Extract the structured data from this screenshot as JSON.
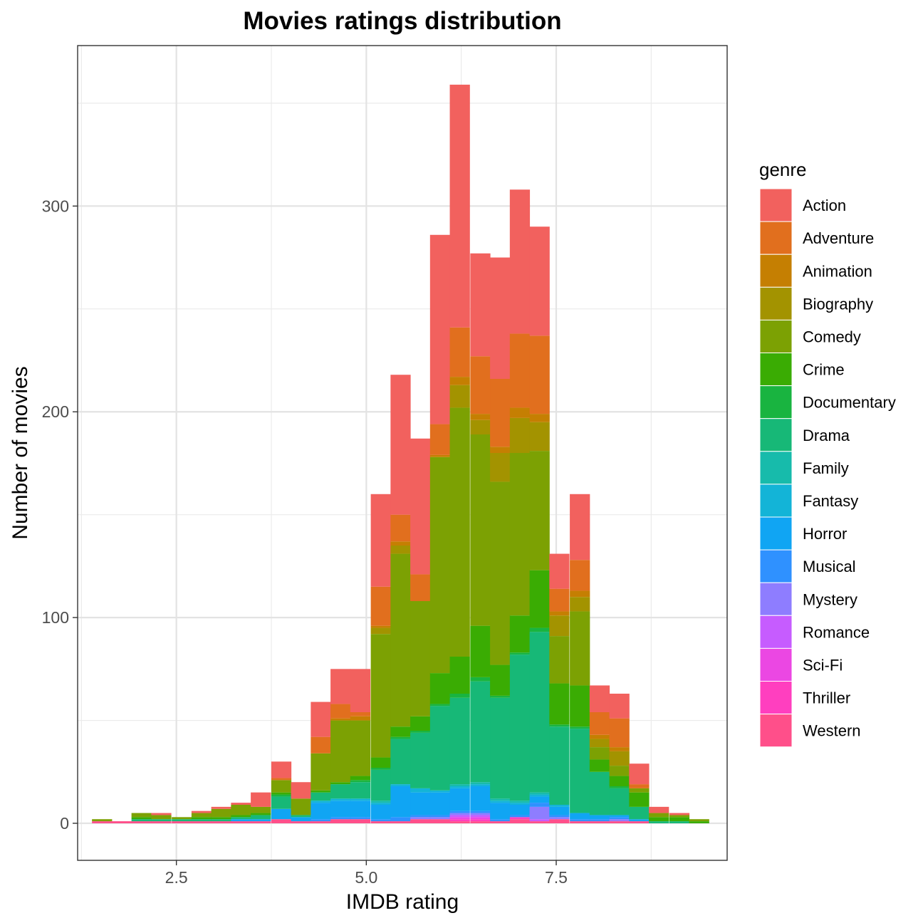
{
  "chart_data": {
    "type": "bar",
    "subtype": "stacked-histogram",
    "title": "Movies ratings distribution",
    "xlabel": "IMDB rating",
    "ylabel": "Number of movies",
    "xlim": [
      1.2,
      9.75
    ],
    "ylim": [
      -18,
      378
    ],
    "x_ticks": [
      2.5,
      5.0,
      7.5
    ],
    "x_tick_labels": [
      "2.5",
      "5.0",
      "7.5"
    ],
    "y_ticks": [
      0,
      100,
      200,
      300
    ],
    "y_tick_labels": [
      "0",
      "100",
      "200",
      "300"
    ],
    "grid": true,
    "legend_title": "genre",
    "legend_position": "right",
    "bin_width": 0.262,
    "bins": [
      1.52,
      1.78,
      2.04,
      2.3,
      2.57,
      2.83,
      3.09,
      3.35,
      3.61,
      3.88,
      4.14,
      4.4,
      4.66,
      4.92,
      5.19,
      5.45,
      5.71,
      5.97,
      6.23,
      6.5,
      6.76,
      7.02,
      7.28,
      7.54,
      7.81,
      8.07,
      8.33,
      8.59,
      8.85,
      9.12,
      9.38
    ],
    "series": [
      {
        "name": "Western",
        "color": "#FF4F8A",
        "values": [
          1,
          1,
          1,
          1,
          1,
          1,
          1,
          1,
          1,
          2,
          1,
          1,
          2,
          2,
          1,
          1,
          2,
          2,
          1,
          1,
          1,
          2,
          1,
          2,
          1,
          1,
          1,
          1,
          0,
          0,
          0
        ]
      },
      {
        "name": "Thriller",
        "color": "#FF3FBF",
        "values": [
          0,
          0,
          0,
          0,
          0,
          0,
          0,
          0,
          0,
          0,
          0,
          0,
          0,
          0,
          0,
          0,
          0,
          0,
          1,
          1,
          0,
          1,
          0,
          0,
          0,
          0,
          0,
          0,
          0,
          0,
          0
        ]
      },
      {
        "name": "Sci-Fi",
        "color": "#EB47E3",
        "values": [
          0,
          0,
          0,
          0,
          0,
          0,
          0,
          0,
          0,
          0,
          0,
          0,
          0,
          0,
          0,
          0,
          0,
          0,
          1,
          1,
          0,
          0,
          0,
          0,
          0,
          0,
          0,
          0,
          0,
          0,
          0
        ]
      },
      {
        "name": "Romance",
        "color": "#C65CFF",
        "values": [
          0,
          0,
          0,
          0,
          0,
          0,
          0,
          0,
          0,
          0,
          0,
          0,
          0,
          0,
          0,
          0,
          0,
          0,
          1,
          1,
          0,
          0,
          1,
          0,
          0,
          0,
          0,
          0,
          0,
          0,
          0
        ]
      },
      {
        "name": "Mystery",
        "color": "#8E7DFF",
        "values": [
          0,
          0,
          0,
          0,
          0,
          0,
          0,
          0,
          0,
          0,
          0,
          0,
          0,
          0,
          0,
          0,
          1,
          1,
          1,
          1,
          0,
          0,
          6,
          1,
          0,
          0,
          1,
          0,
          0,
          0,
          0
        ]
      },
      {
        "name": "Musical",
        "color": "#2F91FF",
        "values": [
          0,
          0,
          0,
          0,
          0,
          0,
          0,
          0,
          0,
          0,
          0,
          1,
          1,
          1,
          1,
          2,
          1,
          1,
          1,
          1,
          1,
          1,
          2,
          1,
          1,
          1,
          1,
          0,
          0,
          0,
          0
        ]
      },
      {
        "name": "Horror",
        "color": "#10A5F3",
        "values": [
          0,
          0,
          0,
          0,
          0,
          0,
          0,
          1,
          1,
          5,
          2,
          8,
          8,
          8,
          7,
          15,
          11,
          11,
          11,
          12,
          8,
          5,
          3,
          4,
          3,
          2,
          1,
          1,
          0,
          0,
          0
        ]
      },
      {
        "name": "Fantasy",
        "color": "#13B4D7",
        "values": [
          0,
          0,
          0,
          0,
          0,
          0,
          0,
          0,
          0,
          0,
          0,
          1,
          1,
          1,
          1,
          1,
          2,
          1,
          1,
          1,
          1,
          1,
          1,
          1,
          0,
          0,
          0,
          0,
          0,
          0,
          0
        ]
      },
      {
        "name": "Family",
        "color": "#17BBAB",
        "values": [
          0,
          0,
          0,
          0,
          0,
          0,
          0,
          0,
          0,
          0,
          0,
          0,
          0,
          0,
          1,
          0,
          0,
          0,
          1,
          1,
          1,
          1,
          1,
          0,
          0,
          0,
          0,
          0,
          0,
          0,
          0
        ]
      },
      {
        "name": "Drama",
        "color": "#17B877",
        "values": [
          0,
          0,
          1,
          1,
          1,
          1,
          1,
          1,
          2,
          6,
          1,
          4,
          7,
          8,
          15,
          22,
          27,
          41,
          42,
          49,
          49,
          71,
          78,
          38,
          41,
          21,
          13,
          6,
          1,
          1,
          0
        ]
      },
      {
        "name": "Documentary",
        "color": "#19B440",
        "values": [
          0,
          0,
          0,
          0,
          0,
          0,
          0,
          0,
          0,
          1,
          0,
          0,
          0,
          1,
          1,
          1,
          1,
          1,
          2,
          2,
          1,
          1,
          2,
          1,
          1,
          0,
          1,
          0,
          0,
          0,
          0
        ]
      },
      {
        "name": "Crime",
        "color": "#3AAC03",
        "values": [
          0,
          0,
          1,
          0,
          0,
          1,
          1,
          1,
          1,
          1,
          0,
          1,
          1,
          2,
          5,
          5,
          7,
          15,
          18,
          25,
          15,
          18,
          28,
          20,
          20,
          6,
          5,
          7,
          2,
          2,
          1
        ]
      },
      {
        "name": "Comedy",
        "color": "#7CA103",
        "values": [
          1,
          0,
          2,
          2,
          1,
          2,
          4,
          5,
          3,
          6,
          8,
          18,
          30,
          27,
          60,
          84,
          56,
          105,
          121,
          93,
          89,
          79,
          58,
          23,
          36,
          6,
          5,
          2,
          2,
          1,
          1
        ]
      },
      {
        "name": "Biography",
        "color": "#A39300",
        "values": [
          0,
          0,
          0,
          0,
          0,
          0,
          0,
          0,
          0,
          0,
          0,
          0,
          0,
          0,
          3,
          4,
          0,
          0,
          11,
          7,
          14,
          17,
          14,
          10,
          7,
          4,
          7,
          0,
          0,
          0,
          0
        ]
      },
      {
        "name": "Animation",
        "color": "#C57F02",
        "values": [
          0,
          0,
          0,
          0,
          0,
          0,
          0,
          0,
          0,
          0,
          0,
          0,
          1,
          2,
          1,
          2,
          0,
          1,
          4,
          3,
          3,
          5,
          4,
          2,
          3,
          2,
          2,
          0,
          0,
          0,
          0
        ]
      },
      {
        "name": "Adventure",
        "color": "#E16F1E",
        "values": [
          0,
          0,
          0,
          0,
          0,
          0,
          0,
          0,
          0,
          1,
          0,
          8,
          7,
          2,
          19,
          13,
          13,
          15,
          24,
          28,
          33,
          36,
          38,
          11,
          15,
          11,
          14,
          2,
          0,
          0,
          0
        ]
      },
      {
        "name": "Action",
        "color": "#F2615E",
        "values": [
          0,
          0,
          0,
          1,
          0,
          1,
          1,
          1,
          7,
          8,
          8,
          17,
          17,
          21,
          45,
          68,
          66,
          92,
          118,
          50,
          59,
          70,
          53,
          17,
          32,
          13,
          12,
          10,
          3,
          1,
          0
        ]
      }
    ]
  }
}
